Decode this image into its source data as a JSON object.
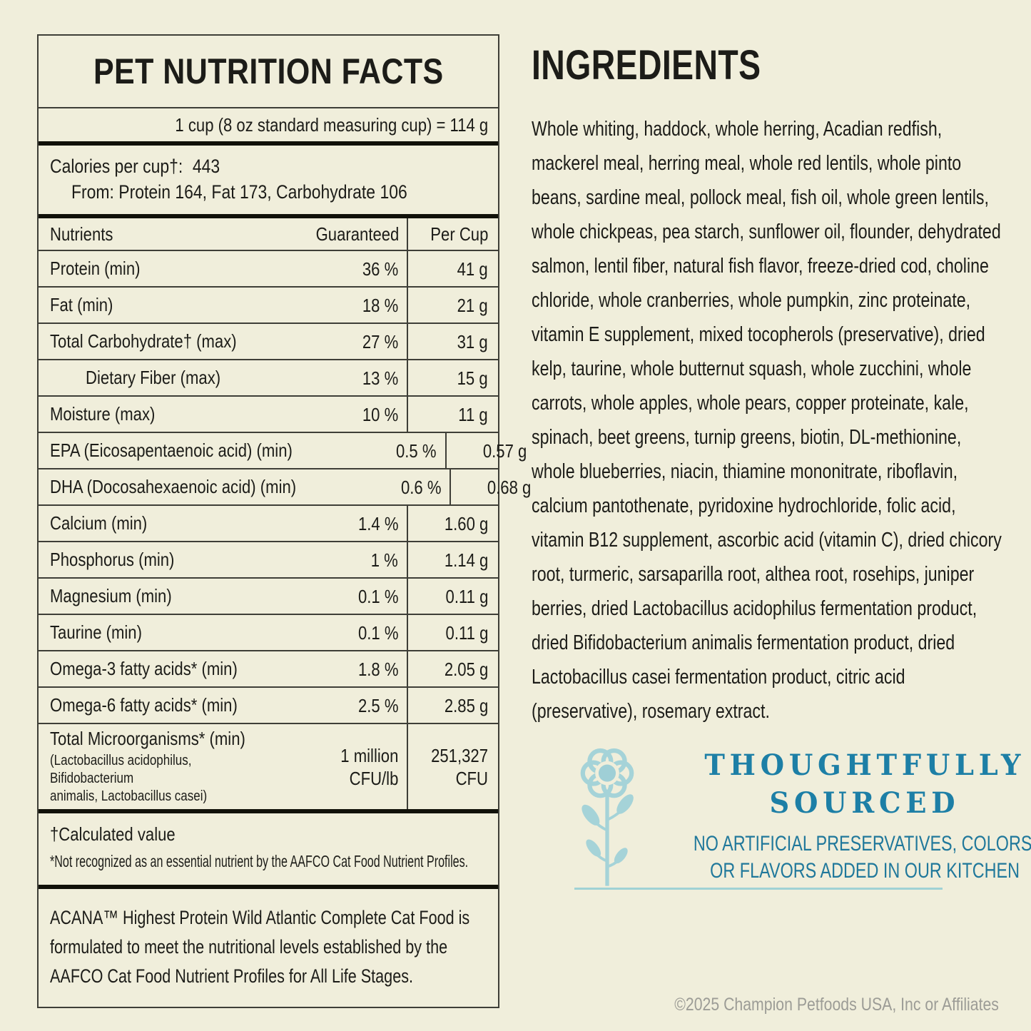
{
  "panel": {
    "title": "PET NUTRITION FACTS",
    "serving_line": "1 cup (8 oz standard measuring cup) = 114 g",
    "calories_label": "Calories per cup†:",
    "calories_value": "443",
    "calories_from_line": "From: Protein 164, Fat 173, Carbohydrate 106",
    "table": {
      "headers": [
        "Nutrients",
        "Guaranteed",
        "Per Cup"
      ],
      "rows": [
        {
          "name": "Protein (min)",
          "guaranteed": "36 %",
          "per_cup": "41 g",
          "indent": false
        },
        {
          "name": "Fat (min)",
          "guaranteed": "18 %",
          "per_cup": "21 g",
          "indent": false
        },
        {
          "name": "Total Carbohydrate† (max)",
          "guaranteed": "27 %",
          "per_cup": "31 g",
          "indent": false
        },
        {
          "name": "Dietary Fiber (max)",
          "guaranteed": "13 %",
          "per_cup": "15 g",
          "indent": true
        },
        {
          "name": "Moisture (max)",
          "guaranteed": "10 %",
          "per_cup": "11 g",
          "indent": false
        },
        {
          "name": "EPA (Eicosapentaenoic acid) (min)",
          "guaranteed": "0.5 %",
          "per_cup": "0.57 g",
          "indent": false
        },
        {
          "name": "DHA (Docosahexaenoic acid) (min)",
          "guaranteed": "0.6 %",
          "per_cup": "0.68 g",
          "indent": false
        },
        {
          "name": "Calcium (min)",
          "guaranteed": "1.4 %",
          "per_cup": "1.60 g",
          "indent": false
        },
        {
          "name": "Phosphorus (min)",
          "guaranteed": "1 %",
          "per_cup": "1.14 g",
          "indent": false
        },
        {
          "name": "Magnesium (min)",
          "guaranteed": "0.1 %",
          "per_cup": "0.11 g",
          "indent": false
        },
        {
          "name": "Taurine (min)",
          "guaranteed": "0.1 %",
          "per_cup": "0.11 g",
          "indent": false
        },
        {
          "name": "Omega-3 fatty acids* (min)",
          "guaranteed": "1.8 %",
          "per_cup": "2.05 g",
          "indent": false
        },
        {
          "name": "Omega-6 fatty acids* (min)",
          "guaranteed": "2.5 %",
          "per_cup": "2.85 g",
          "indent": false
        },
        {
          "name": "Total Microorganisms* (min)",
          "note": "(Lactobacillus acidophilus, Bifidobacterium\nanimalis, Lactobacillus casei)",
          "guaranteed": "1 million\nCFU/lb",
          "per_cup": "251,327\nCFU",
          "indent": false
        }
      ]
    },
    "footnotes": [
      "†Calculated value",
      "*Not recognized as an essential nutrient by the AAFCO Cat Food Nutrient Profiles."
    ],
    "aafco_statement": "ACANA™ Highest Protein Wild Atlantic Complete Cat Food is formulated to meet the nutritional levels established by the AAFCO Cat Food Nutrient Profiles for All Life Stages."
  },
  "ingredients": {
    "heading": "INGREDIENTS",
    "text": "Whole whiting, haddock, whole herring, Acadian redfish, mackerel meal, herring meal, whole red lentils, whole pinto beans, sardine meal, pollock meal, fish oil, whole green lentils, whole chickpeas, pea starch, sunflower oil, flounder, dehydrated salmon, lentil fiber, natural fish flavor, freeze-dried cod, choline chloride, whole cranberries, whole pumpkin, zinc proteinate, vitamin E supplement, mixed tocopherols (preservative), dried kelp, taurine, whole butternut squash, whole zucchini, whole carrots, whole apples, whole pears, copper proteinate, kale, spinach, beet greens, turnip greens, biotin, DL-methionine, whole blueberries, niacin, thiamine mononitrate, riboflavin, calcium pantothenate, pyridoxine hydrochloride, folic acid, vitamin B12 supplement, ascorbic acid (vitamin C), dried chicory root, turmeric, sarsaparilla root, althea root, rosehips, juniper berries, dried Lactobacillus acidophilus fermentation product, dried Bifidobacterium animalis fermentation product, dried Lactobacillus casei fermentation product, citric acid (preservative), rosemary extract."
  },
  "sourced": {
    "icon": "flower-icon",
    "heading_line1": "THOUGHTFULLY",
    "heading_line2": "SOURCED",
    "subtext_line1": "NO ARTIFICIAL PRESERVATIVES, COLORS,",
    "subtext_line2": "OR FLAVORS ADDED IN OUR KITCHEN",
    "colors": {
      "heading": "#1d7fa6",
      "subtext": "#20789b",
      "icon": "#a5d3d8"
    }
  },
  "footer": {
    "copyright": "©2025 Champion Petfoods USA, Inc or Affiliates"
  },
  "colors": {
    "background": "#f0eedb",
    "text": "#1c1c18",
    "border": "#3e3e37"
  }
}
